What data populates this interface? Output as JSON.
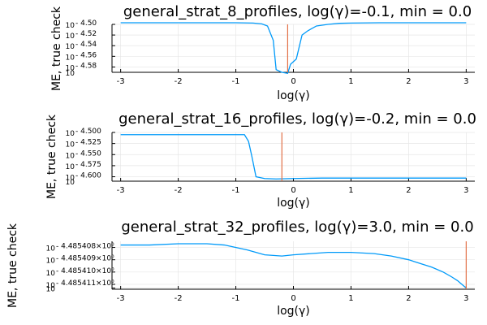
{
  "chart_data": [
    {
      "type": "line",
      "title": "general_strat_8_profiles, log(γ)=-0.1, min = 0.0",
      "xlabel": "log(γ)",
      "ylabel": "ME, true check",
      "xlim": [
        -3.15,
        3.15
      ],
      "xticks": [
        -3,
        -2,
        -1,
        0,
        1,
        2,
        3
      ],
      "xtick_labels": [
        "-3",
        "-2",
        "-1",
        "0",
        "1",
        "2",
        "3"
      ],
      "ylim": [
        4.5,
        4.59
      ],
      "yinverted": true,
      "yticks": [
        4.5,
        4.52,
        4.54,
        4.56,
        4.58,
        4.59
      ],
      "ytick_labels": [
        {
          "base": "10",
          "exp": "- 4.50"
        },
        {
          "base": "10",
          "exp": "- 4.52"
        },
        {
          "base": "10",
          "exp": "- 4.54"
        },
        {
          "base": "10",
          "exp": "- 4.56"
        },
        {
          "base": "10",
          "exp": "- 4.58"
        },
        {
          "base": "10",
          "exp": ""
        }
      ],
      "grid": true,
      "legend": "none",
      "vline": -0.1,
      "series_color": "#009AF9",
      "vline_color": "#E26F46",
      "series": [
        {
          "x": [
            -3.0,
            -2.5,
            -2.0,
            -1.5,
            -1.0,
            -0.7,
            -0.55,
            -0.45,
            -0.35,
            -0.3,
            -0.2,
            -0.1,
            -0.05,
            0.05,
            0.15,
            0.25,
            0.4,
            0.6,
            0.8,
            1.0,
            1.5,
            2.0,
            2.5,
            3.0
          ],
          "y": [
            4.497,
            4.497,
            4.497,
            4.497,
            4.497,
            4.4975,
            4.499,
            4.503,
            4.53,
            4.585,
            4.59,
            4.592,
            4.575,
            4.565,
            4.52,
            4.512,
            4.503,
            4.5,
            4.498,
            4.4975,
            4.497,
            4.497,
            4.497,
            4.497
          ]
        }
      ]
    },
    {
      "type": "line",
      "title": "general_strat_16_profiles, log(γ)=-0.2, min = 0.0",
      "xlabel": "log(γ)",
      "ylabel": "ME, true check",
      "xlim": [
        -3.15,
        3.15
      ],
      "xticks": [
        -3,
        -2,
        -1,
        0,
        1,
        2,
        3
      ],
      "xtick_labels": [
        "-3",
        "-2",
        "-1",
        "0",
        "1",
        "2",
        "3"
      ],
      "ylim": [
        4.5,
        4.61
      ],
      "yinverted": true,
      "yticks": [
        4.5,
        4.525,
        4.55,
        4.575,
        4.6,
        4.61
      ],
      "ytick_labels": [
        {
          "base": "10",
          "exp": "- 4.500"
        },
        {
          "base": "10",
          "exp": "- 4.525"
        },
        {
          "base": "10",
          "exp": "- 4.550"
        },
        {
          "base": "10",
          "exp": "- 4.575"
        },
        {
          "base": "10",
          "exp": "- 4.600"
        },
        {
          "base": "10",
          "exp": ""
        }
      ],
      "grid": true,
      "legend": "none",
      "vline": -0.2,
      "series_color": "#009AF9",
      "vline_color": "#E26F46",
      "series": [
        {
          "x": [
            -3.0,
            -2.5,
            -2.0,
            -1.5,
            -1.0,
            -0.85,
            -0.78,
            -0.72,
            -0.65,
            -0.5,
            -0.3,
            0.0,
            0.5,
            1.0,
            1.5,
            2.0,
            2.5,
            3.0
          ],
          "y": [
            4.505,
            4.505,
            4.505,
            4.505,
            4.505,
            4.505,
            4.52,
            4.555,
            4.6,
            4.604,
            4.605,
            4.604,
            4.603,
            4.603,
            4.603,
            4.603,
            4.603,
            4.603
          ]
        }
      ]
    },
    {
      "type": "line",
      "title": "general_strat_32_profiles, log(γ)=3.0, min = 0.0",
      "xlabel": "log(γ)",
      "ylabel": "ME, true check",
      "xlim": [
        -3.15,
        3.15
      ],
      "xticks": [
        -3,
        -2,
        -1,
        0,
        1,
        2,
        3
      ],
      "xtick_labels": [
        "-3",
        "-2",
        "-1",
        "0",
        "1",
        "2",
        "3"
      ],
      "ylim": [
        4.4854075,
        4.4854114
      ],
      "yinverted": true,
      "yticks": [
        4.485408,
        4.485409,
        4.48541,
        4.485411,
        4.4854113
      ],
      "ytick_labels": [
        {
          "base": "10",
          "exp": "- 4.485408×10⁰"
        },
        {
          "base": "10",
          "exp": "- 4.485409×10⁰"
        },
        {
          "base": "10",
          "exp": "- 4.485410×10⁰"
        },
        {
          "base": "10",
          "exp": "- 4.485411×10⁰"
        },
        {
          "base": "10",
          "exp": ""
        }
      ],
      "grid": true,
      "legend": "none",
      "vline": 3.0,
      "series_color": "#009AF9",
      "vline_color": "#E26F46",
      "series": [
        {
          "x": [
            -3.0,
            -2.5,
            -2.0,
            -1.5,
            -1.2,
            -0.8,
            -0.5,
            -0.2,
            0.0,
            0.3,
            0.6,
            1.0,
            1.4,
            1.7,
            2.0,
            2.2,
            2.4,
            2.6,
            2.75,
            2.85,
            2.95,
            3.0
          ],
          "y": [
            4.4854078,
            4.4854078,
            4.4854077,
            4.4854077,
            4.4854078,
            4.4854082,
            4.4854086,
            4.4854087,
            4.4854086,
            4.4854085,
            4.4854084,
            4.4854084,
            4.4854085,
            4.4854087,
            4.485409,
            4.4854093,
            4.4854096,
            4.48541,
            4.4854104,
            4.4854107,
            4.4854111,
            4.4854113
          ]
        }
      ]
    }
  ]
}
